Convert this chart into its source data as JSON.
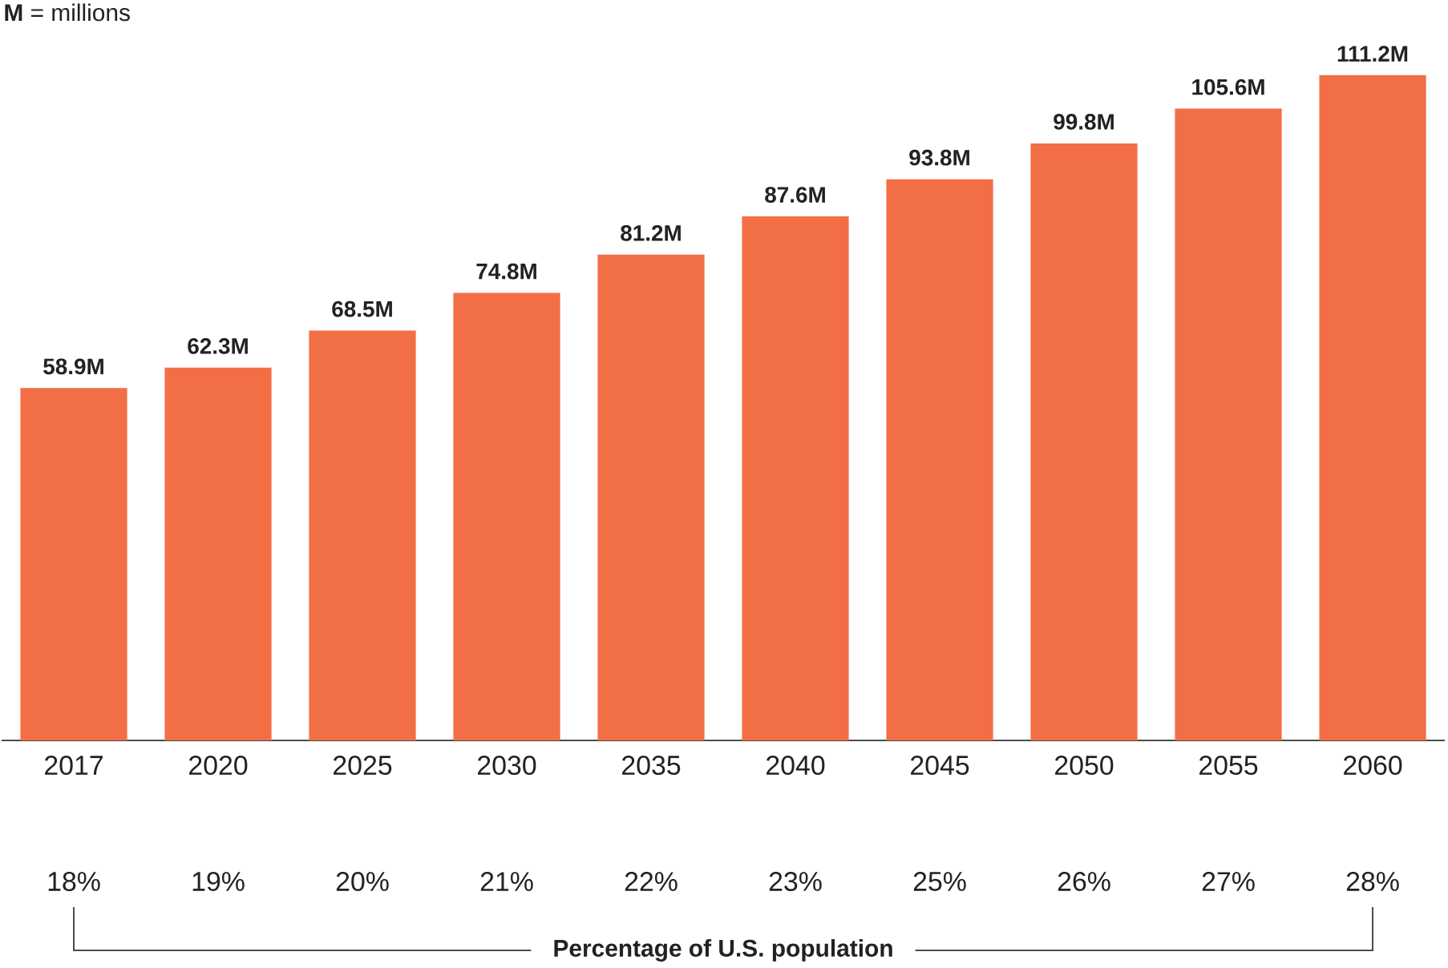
{
  "chart_data": {
    "type": "bar",
    "categories": [
      "2017",
      "2020",
      "2025",
      "2030",
      "2035",
      "2040",
      "2045",
      "2050",
      "2055",
      "2060"
    ],
    "values": [
      58.9,
      62.3,
      68.5,
      74.8,
      81.2,
      87.6,
      93.8,
      99.8,
      105.6,
      111.2
    ],
    "value_labels": [
      "58.9M",
      "62.3M",
      "68.5M",
      "74.8M",
      "81.2M",
      "87.6M",
      "93.8M",
      "99.8M",
      "105.6M",
      "111.2M"
    ],
    "color": "#f26f45",
    "annotations": [
      "**M** = millions",
      "18%",
      "19%",
      "20%",
      "21%",
      "22%",
      "23%",
      "25%",
      "26%",
      "27%",
      "28%",
      "Percentage of U.S. population"
    ]
  }
}
